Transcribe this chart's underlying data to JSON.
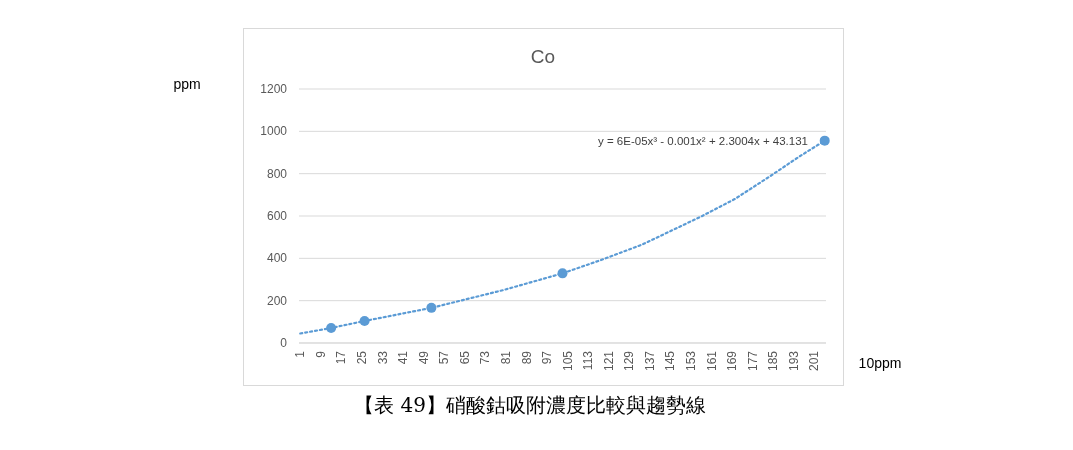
{
  "chart_data": {
    "type": "scatter",
    "title": "Co",
    "xlabel": "10ppm",
    "ylabel": "ppm",
    "xlim": [
      0.5,
      205.5
    ],
    "xticks": [
      1,
      9,
      17,
      25,
      33,
      41,
      49,
      57,
      65,
      73,
      81,
      89,
      97,
      105,
      113,
      121,
      129,
      137,
      145,
      153,
      161,
      169,
      177,
      185,
      193,
      201
    ],
    "ylim": [
      0,
      1200
    ],
    "yticks": [
      0,
      200,
      400,
      600,
      800,
      1000,
      1200
    ],
    "grid": "y",
    "series": [
      {
        "type": "line",
        "color": "#5b9bd5",
        "line_style": "dotted",
        "marker": "none",
        "x": [
          1,
          13,
          26,
          52,
          80,
          103,
          118,
          134,
          157,
          170,
          184,
          195,
          205
        ],
        "values": [
          45,
          71,
          104,
          166,
          250,
          329,
          392,
          465,
          598,
          680,
          790,
          880,
          956
        ]
      },
      {
        "color": "#5b9bd5",
        "marker": "circle",
        "x": [
          13,
          26,
          52,
          103,
          205
        ],
        "values": [
          71,
          104,
          166,
          329,
          956
        ]
      }
    ],
    "annotations": [
      "y = 6E-05x³ - 0.001x² + 2.3004x + 43.131",
      "【表 49】硝酸鈷吸附濃度比較與趨勢線"
    ]
  }
}
